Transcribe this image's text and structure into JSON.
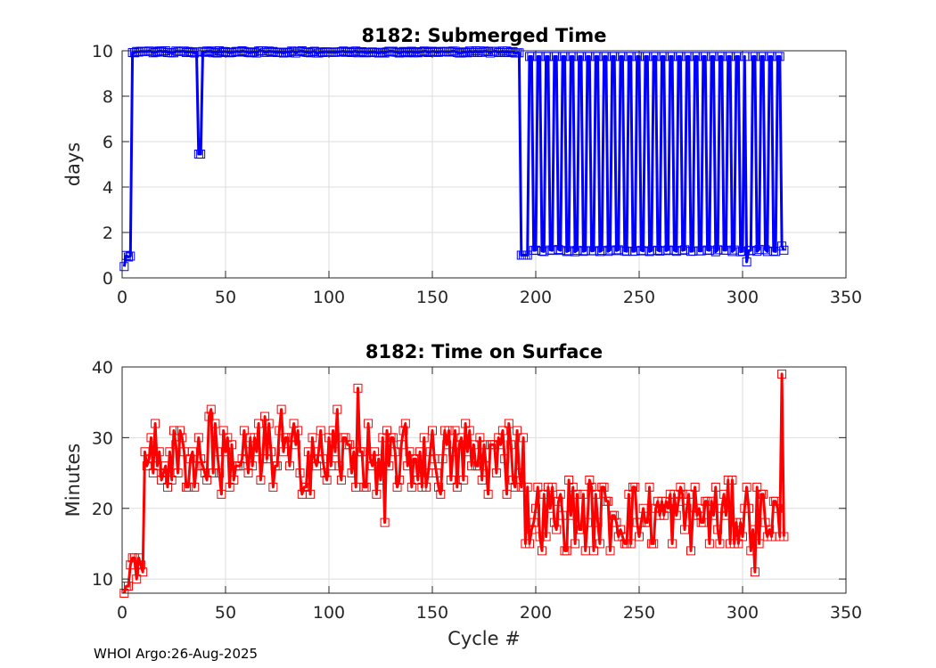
{
  "chart_data": [
    {
      "type": "line",
      "title": "8182: Submerged Time",
      "xlabel": "",
      "ylabel": "days",
      "xlim": [
        0,
        350
      ],
      "ylim": [
        0,
        10
      ],
      "xticks": [
        "0",
        "50",
        "100",
        "150",
        "200",
        "250",
        "300",
        "350"
      ],
      "yticks": [
        "0",
        "2",
        "4",
        "6",
        "8",
        "10"
      ],
      "grid": true,
      "color": "#0000ff",
      "marker": "square",
      "series": [
        {
          "name": "Submerged Time",
          "x": [],
          "y": []
        }
      ]
    },
    {
      "type": "line",
      "title": "8182: Time on Surface",
      "xlabel": "Cycle #",
      "ylabel": "Minutes",
      "xlim": [
        0,
        350
      ],
      "ylim": [
        8,
        40
      ],
      "xticks": [
        "0",
        "50",
        "100",
        "150",
        "200",
        "250",
        "300",
        "350"
      ],
      "yticks": [
        "10",
        "20",
        "30",
        "40"
      ],
      "grid": true,
      "color": "#ff0000",
      "marker": "square",
      "series": [
        {
          "name": "Time on Surface",
          "x": [],
          "y": []
        }
      ]
    }
  ],
  "footer": "WHOI Argo:26-Aug-2025"
}
